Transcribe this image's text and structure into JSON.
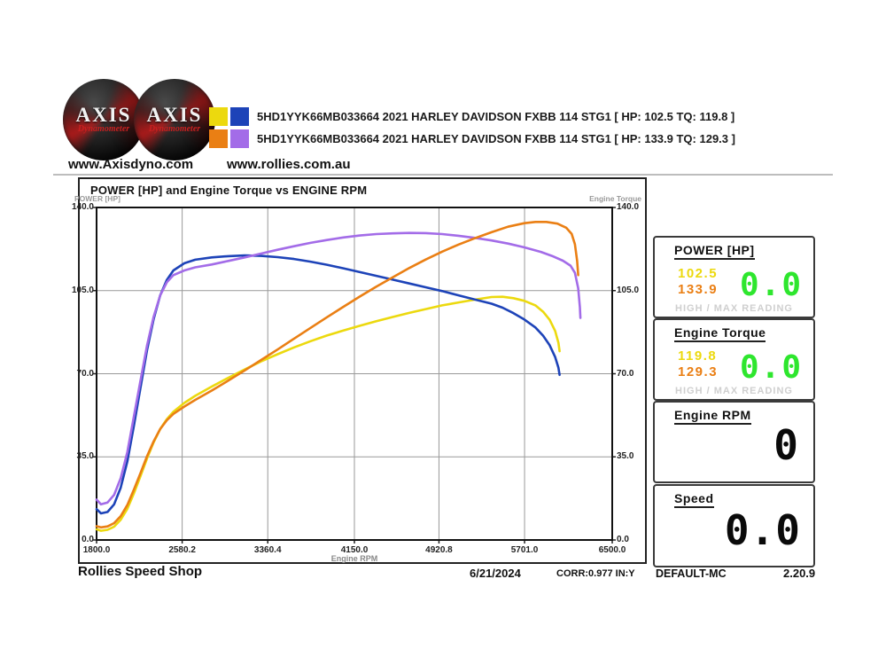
{
  "header": {
    "logo": {
      "brand": "AXIS",
      "sub": "Dynamometer"
    },
    "legend": [
      {
        "swatches": [
          "#ecd90e",
          "#1d43b8"
        ],
        "label": "5HD1YYK66MB033664 2021 HARLEY DAVIDSON FXBB 114 STG1 [ HP: 102.5 TQ: 119.8 ]"
      },
      {
        "swatches": [
          "#ea7f14",
          "#a36ce8"
        ],
        "label": "5HD1YYK66MB033664 2021 HARLEY DAVIDSON FXBB 114 STG1 [ HP: 133.9 TQ: 129.3 ]"
      }
    ],
    "site1": "www.Axisdyno.com",
    "site2": "www.rollies.com.au"
  },
  "chart": {
    "title": "POWER [HP] and Engine Torque vs ENGINE RPM",
    "left_caption": "POWER [HP]",
    "right_caption": "Engine Torque",
    "x_caption": "Engine RPM"
  },
  "chart_data": {
    "type": "line",
    "title": "POWER [HP] and Engine Torque vs ENGINE RPM",
    "xlabel": "Engine RPM",
    "ylabel_left": "POWER [HP]",
    "ylabel_right": "Engine Torque",
    "xlim": [
      1800,
      6500
    ],
    "ylim": [
      0,
      140
    ],
    "grid": true,
    "x_ticks": [
      1800.0,
      2580.2,
      3360.4,
      4150.0,
      4920.8,
      5701.0,
      6500.0
    ],
    "x_tick_labels": [
      "1800.0",
      "2580.2",
      "3360.4",
      "4150.0",
      "4920.8",
      "5701.0",
      "6500.0"
    ],
    "y_ticks": [
      0,
      35,
      70,
      105,
      140
    ],
    "y_tick_labels": [
      "0.0",
      "35.0",
      "70.0",
      "105.0",
      "140.0"
    ],
    "series": [
      {
        "name": "Run 1 Power (HP), max 102.5",
        "color": "#ecd90e",
        "points": [
          [
            1800,
            4.5
          ],
          [
            1840,
            3.9
          ],
          [
            1900,
            4.3
          ],
          [
            1960,
            5.6
          ],
          [
            2020,
            8.5
          ],
          [
            2080,
            13.1
          ],
          [
            2140,
            19.6
          ],
          [
            2200,
            26.8
          ],
          [
            2260,
            34.4
          ],
          [
            2320,
            41.1
          ],
          [
            2380,
            46.7
          ],
          [
            2440,
            50.9
          ],
          [
            2500,
            54.0
          ],
          [
            2600,
            57.7
          ],
          [
            2700,
            60.7
          ],
          [
            2850,
            64.6
          ],
          [
            3000,
            68.3
          ],
          [
            3150,
            71.8
          ],
          [
            3300,
            75.2
          ],
          [
            3450,
            78.2
          ],
          [
            3600,
            81.1
          ],
          [
            3750,
            83.7
          ],
          [
            3900,
            86.1
          ],
          [
            4050,
            88.2
          ],
          [
            4200,
            90.2
          ],
          [
            4350,
            92.1
          ],
          [
            4500,
            93.9
          ],
          [
            4650,
            95.6
          ],
          [
            4800,
            97.2
          ],
          [
            4950,
            98.8
          ],
          [
            5100,
            100.0
          ],
          [
            5250,
            101.2
          ],
          [
            5400,
            102.3
          ],
          [
            5500,
            102.4
          ],
          [
            5600,
            101.8
          ],
          [
            5700,
            100.7
          ],
          [
            5800,
            98.8
          ],
          [
            5870,
            96.1
          ],
          [
            5930,
            92.7
          ],
          [
            5980,
            88.0
          ],
          [
            6010,
            83.0
          ],
          [
            6020,
            79.5
          ]
        ]
      },
      {
        "name": "Run 1 Torque (lb-ft), max 119.8",
        "color": "#1d43b8",
        "points": [
          [
            1800,
            13.0
          ],
          [
            1840,
            11.2
          ],
          [
            1900,
            11.8
          ],
          [
            1960,
            15.0
          ],
          [
            2020,
            22.0
          ],
          [
            2080,
            33.0
          ],
          [
            2140,
            48.0
          ],
          [
            2200,
            64.0
          ],
          [
            2260,
            80.0
          ],
          [
            2320,
            93.0
          ],
          [
            2380,
            103.0
          ],
          [
            2440,
            109.5
          ],
          [
            2500,
            113.5
          ],
          [
            2600,
            116.5
          ],
          [
            2700,
            118.0
          ],
          [
            2850,
            119.0
          ],
          [
            3000,
            119.5
          ],
          [
            3150,
            119.8
          ],
          [
            3300,
            119.6
          ],
          [
            3450,
            119.1
          ],
          [
            3600,
            118.3
          ],
          [
            3750,
            117.2
          ],
          [
            3900,
            115.9
          ],
          [
            4050,
            114.4
          ],
          [
            4200,
            112.8
          ],
          [
            4350,
            111.2
          ],
          [
            4500,
            109.6
          ],
          [
            4650,
            108.0
          ],
          [
            4800,
            106.4
          ],
          [
            4950,
            104.8
          ],
          [
            5100,
            103.0
          ],
          [
            5250,
            101.2
          ],
          [
            5400,
            99.5
          ],
          [
            5500,
            97.8
          ],
          [
            5600,
            95.5
          ],
          [
            5700,
            92.8
          ],
          [
            5800,
            89.5
          ],
          [
            5870,
            86.0
          ],
          [
            5930,
            82.0
          ],
          [
            5980,
            77.0
          ],
          [
            6010,
            72.5
          ],
          [
            6020,
            69.5
          ]
        ]
      },
      {
        "name": "Run 2 Torque (lb-ft), max 129.3",
        "color": "#a36ce8",
        "points": [
          [
            1800,
            17.0
          ],
          [
            1840,
            15.0
          ],
          [
            1900,
            15.8
          ],
          [
            1960,
            19.0
          ],
          [
            2020,
            26.0
          ],
          [
            2080,
            37.0
          ],
          [
            2140,
            52.0
          ],
          [
            2200,
            67.0
          ],
          [
            2260,
            82.0
          ],
          [
            2320,
            94.0
          ],
          [
            2380,
            103.0
          ],
          [
            2440,
            108.5
          ],
          [
            2500,
            111.5
          ],
          [
            2600,
            113.5
          ],
          [
            2700,
            114.8
          ],
          [
            2850,
            116.0
          ],
          [
            3000,
            117.5
          ],
          [
            3150,
            119.0
          ],
          [
            3300,
            120.6
          ],
          [
            3450,
            122.2
          ],
          [
            3600,
            123.7
          ],
          [
            3750,
            125.1
          ],
          [
            3900,
            126.3
          ],
          [
            4050,
            127.4
          ],
          [
            4200,
            128.2
          ],
          [
            4350,
            128.8
          ],
          [
            4500,
            129.1
          ],
          [
            4650,
            129.3
          ],
          [
            4800,
            129.2
          ],
          [
            4950,
            128.8
          ],
          [
            5100,
            128.1
          ],
          [
            5250,
            127.2
          ],
          [
            5400,
            126.1
          ],
          [
            5550,
            124.8
          ],
          [
            5700,
            123.2
          ],
          [
            5850,
            121.3
          ],
          [
            5950,
            119.6
          ],
          [
            6050,
            117.6
          ],
          [
            6120,
            115.5
          ],
          [
            6160,
            112.5
          ],
          [
            6190,
            106.0
          ],
          [
            6205,
            98.0
          ],
          [
            6210,
            93.5
          ]
        ]
      },
      {
        "name": "Run 2 Power (HP), max 133.9",
        "color": "#ea7f14",
        "points": [
          [
            1800,
            5.8
          ],
          [
            1840,
            5.3
          ],
          [
            1900,
            5.7
          ],
          [
            1960,
            7.1
          ],
          [
            2020,
            10.0
          ],
          [
            2080,
            14.7
          ],
          [
            2140,
            21.2
          ],
          [
            2200,
            28.1
          ],
          [
            2260,
            35.3
          ],
          [
            2320,
            41.5
          ],
          [
            2380,
            46.7
          ],
          [
            2440,
            50.4
          ],
          [
            2500,
            53.1
          ],
          [
            2600,
            56.2
          ],
          [
            2700,
            59.0
          ],
          [
            2850,
            62.9
          ],
          [
            3000,
            67.1
          ],
          [
            3150,
            71.4
          ],
          [
            3300,
            75.8
          ],
          [
            3450,
            80.2
          ],
          [
            3600,
            84.8
          ],
          [
            3750,
            89.3
          ],
          [
            3900,
            93.8
          ],
          [
            4050,
            98.2
          ],
          [
            4200,
            102.5
          ],
          [
            4350,
            106.7
          ],
          [
            4500,
            110.6
          ],
          [
            4650,
            114.5
          ],
          [
            4800,
            118.1
          ],
          [
            4950,
            121.4
          ],
          [
            5100,
            124.4
          ],
          [
            5250,
            127.1
          ],
          [
            5400,
            129.6
          ],
          [
            5550,
            131.9
          ],
          [
            5700,
            133.4
          ],
          [
            5800,
            133.9
          ],
          [
            5900,
            133.9
          ],
          [
            6000,
            133.2
          ],
          [
            6080,
            131.5
          ],
          [
            6130,
            128.9
          ],
          [
            6160,
            124.5
          ],
          [
            6180,
            117.5
          ],
          [
            6190,
            111.5
          ]
        ]
      }
    ]
  },
  "panels": {
    "power": {
      "title": "POWER [HP]",
      "run1": "102.5",
      "run2": "133.9",
      "live": "0.0",
      "footer": "HIGH / MAX READING"
    },
    "torque": {
      "title": "Engine Torque",
      "run1": "119.8",
      "run2": "129.3",
      "live": "0.0",
      "footer": "HIGH / MAX READING"
    },
    "rpm": {
      "title": "Engine RPM",
      "live": "0"
    },
    "speed": {
      "title": "Speed",
      "live": "0.0"
    }
  },
  "colors": {
    "run1_power": "#ecd90e",
    "run1_torque": "#1d43b8",
    "run2_power": "#ea7f14",
    "run2_torque": "#a36ce8",
    "live_green": "#2ee62e",
    "grid": "#999999"
  },
  "statusbar": {
    "shop": "Rollies Speed Shop",
    "date": "6/21/2024",
    "correction": "CORR:0.977 IN:Y",
    "profile": "DEFAULT-MC",
    "version": "2.20.9"
  }
}
